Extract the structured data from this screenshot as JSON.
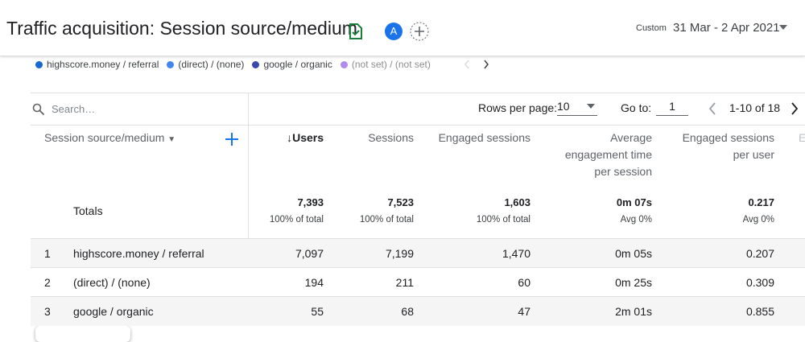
{
  "header": {
    "title": "Traffic acquisition: Session source/medium",
    "avatar": "A",
    "date_label": "Custom",
    "date_range": "31 Mar - 2 Apr 2021"
  },
  "legend": [
    "highscore.money / referral",
    "(direct) / (none)",
    "google / organic",
    "(not set) / (not set)"
  ],
  "toolbar": {
    "search": "Search…",
    "rows_per_page_label": "Rows per page:",
    "rows_per_page": "10",
    "goto_label": "Go to:",
    "goto_value": "1",
    "pagination": "1-10 of 18"
  },
  "table": {
    "dimension": "Session source/medium",
    "columns": [
      "Users",
      "Sessions",
      "Engaged sessions",
      "Average engagement time per session",
      "Engaged sessions per user",
      "E"
    ],
    "totals": {
      "label": "Totals",
      "values": [
        "7,393",
        "7,523",
        "1,603",
        "0m 07s",
        "0.217"
      ],
      "notes": [
        "100% of total",
        "100% of total",
        "100% of total",
        "Avg 0%",
        "Avg 0%"
      ]
    },
    "rows": [
      [
        "1",
        "highscore.money / referral",
        "7,097",
        "7,199",
        "1,470",
        "0m 05s",
        "0.207"
      ],
      [
        "2",
        "(direct) / (none)",
        "194",
        "211",
        "60",
        "0m 25s",
        "0.309"
      ],
      [
        "3",
        "google / organic",
        "55",
        "68",
        "47",
        "2m 01s",
        "0.855"
      ]
    ]
  }
}
